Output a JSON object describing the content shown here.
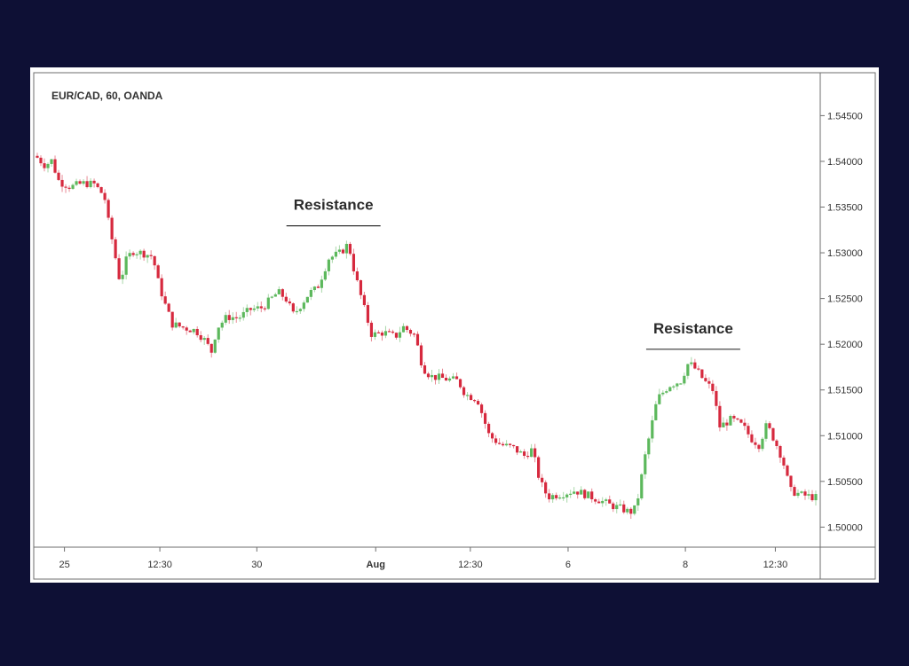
{
  "chart_data": {
    "type": "candlestick",
    "title": "EUR/CAD, 60, OANDA",
    "colors": {
      "up": "#5cb85c",
      "down": "#d6293e",
      "background": "#ffffff",
      "axis": "#555555"
    },
    "y_ticks": [
      "1.54500",
      "1.54000",
      "1.53500",
      "1.53000",
      "1.52500",
      "1.52000",
      "1.51500",
      "1.51000",
      "1.50500",
      "1.50000"
    ],
    "ylim": [
      1.498,
      1.5495
    ],
    "x_ticks": [
      {
        "label": "25",
        "bold": false,
        "pos": 0.037
      },
      {
        "label": "12:30",
        "bold": false,
        "pos": 0.159
      },
      {
        "label": "30",
        "bold": false,
        "pos": 0.283
      },
      {
        "label": "Aug",
        "bold": true,
        "pos": 0.435
      },
      {
        "label": "12:30",
        "bold": false,
        "pos": 0.556
      },
      {
        "label": "6",
        "bold": false,
        "pos": 0.681
      },
      {
        "label": "8",
        "bold": false,
        "pos": 0.831
      },
      {
        "label": "12:30",
        "bold": false,
        "pos": 0.946
      }
    ],
    "close_path": [
      [
        0.0,
        1.5406
      ],
      [
        0.013,
        1.5395
      ],
      [
        0.02,
        1.5402
      ],
      [
        0.03,
        1.5378
      ],
      [
        0.045,
        1.5372
      ],
      [
        0.06,
        1.5376
      ],
      [
        0.075,
        1.5375
      ],
      [
        0.088,
        1.5362
      ],
      [
        0.093,
        1.5335
      ],
      [
        0.1,
        1.5305
      ],
      [
        0.108,
        1.5268
      ],
      [
        0.116,
        1.5292
      ],
      [
        0.124,
        1.5302
      ],
      [
        0.14,
        1.5299
      ],
      [
        0.15,
        1.5296
      ],
      [
        0.156,
        1.5271
      ],
      [
        0.165,
        1.5245
      ],
      [
        0.175,
        1.5222
      ],
      [
        0.19,
        1.5218
      ],
      [
        0.205,
        1.5215
      ],
      [
        0.215,
        1.5206
      ],
      [
        0.225,
        1.5192
      ],
      [
        0.232,
        1.5218
      ],
      [
        0.245,
        1.523
      ],
      [
        0.26,
        1.5229
      ],
      [
        0.275,
        1.5238
      ],
      [
        0.29,
        1.524
      ],
      [
        0.31,
        1.5257
      ],
      [
        0.32,
        1.525
      ],
      [
        0.33,
        1.5232
      ],
      [
        0.35,
        1.5256
      ],
      [
        0.36,
        1.5261
      ],
      [
        0.375,
        1.5294
      ],
      [
        0.39,
        1.53
      ],
      [
        0.4,
        1.531
      ],
      [
        0.408,
        1.5278
      ],
      [
        0.42,
        1.524
      ],
      [
        0.43,
        1.521
      ],
      [
        0.445,
        1.5213
      ],
      [
        0.46,
        1.5208
      ],
      [
        0.47,
        1.5219
      ],
      [
        0.485,
        1.521
      ],
      [
        0.495,
        1.5175
      ],
      [
        0.505,
        1.5165
      ],
      [
        0.525,
        1.5162
      ],
      [
        0.54,
        1.516
      ],
      [
        0.55,
        1.5145
      ],
      [
        0.565,
        1.514
      ],
      [
        0.58,
        1.51
      ],
      [
        0.595,
        1.509
      ],
      [
        0.61,
        1.5087
      ],
      [
        0.625,
        1.5078
      ],
      [
        0.635,
        1.5085
      ],
      [
        0.645,
        1.505
      ],
      [
        0.655,
        1.5033
      ],
      [
        0.67,
        1.5036
      ],
      [
        0.69,
        1.504
      ],
      [
        0.705,
        1.5035
      ],
      [
        0.72,
        1.503
      ],
      [
        0.735,
        1.5024
      ],
      [
        0.75,
        1.502
      ],
      [
        0.76,
        1.5016
      ],
      [
        0.768,
        1.5021
      ],
      [
        0.78,
        1.508
      ],
      [
        0.795,
        1.514
      ],
      [
        0.81,
        1.5155
      ],
      [
        0.825,
        1.516
      ],
      [
        0.835,
        1.518
      ],
      [
        0.845,
        1.5172
      ],
      [
        0.855,
        1.516
      ],
      [
        0.866,
        1.515
      ],
      [
        0.875,
        1.511
      ],
      [
        0.89,
        1.5118
      ],
      [
        0.905,
        1.511
      ],
      [
        0.915,
        1.5097
      ],
      [
        0.925,
        1.509
      ],
      [
        0.935,
        1.5112
      ],
      [
        0.945,
        1.5095
      ],
      [
        0.955,
        1.5075
      ],
      [
        0.965,
        1.504
      ],
      [
        0.98,
        1.5035
      ],
      [
        1.0,
        1.5032
      ]
    ],
    "annotations": [
      {
        "text": "Resistance",
        "x": 0.381,
        "y": 1.5347
      },
      {
        "text": "Resistance",
        "x": 0.841,
        "y": 1.5212
      }
    ]
  }
}
